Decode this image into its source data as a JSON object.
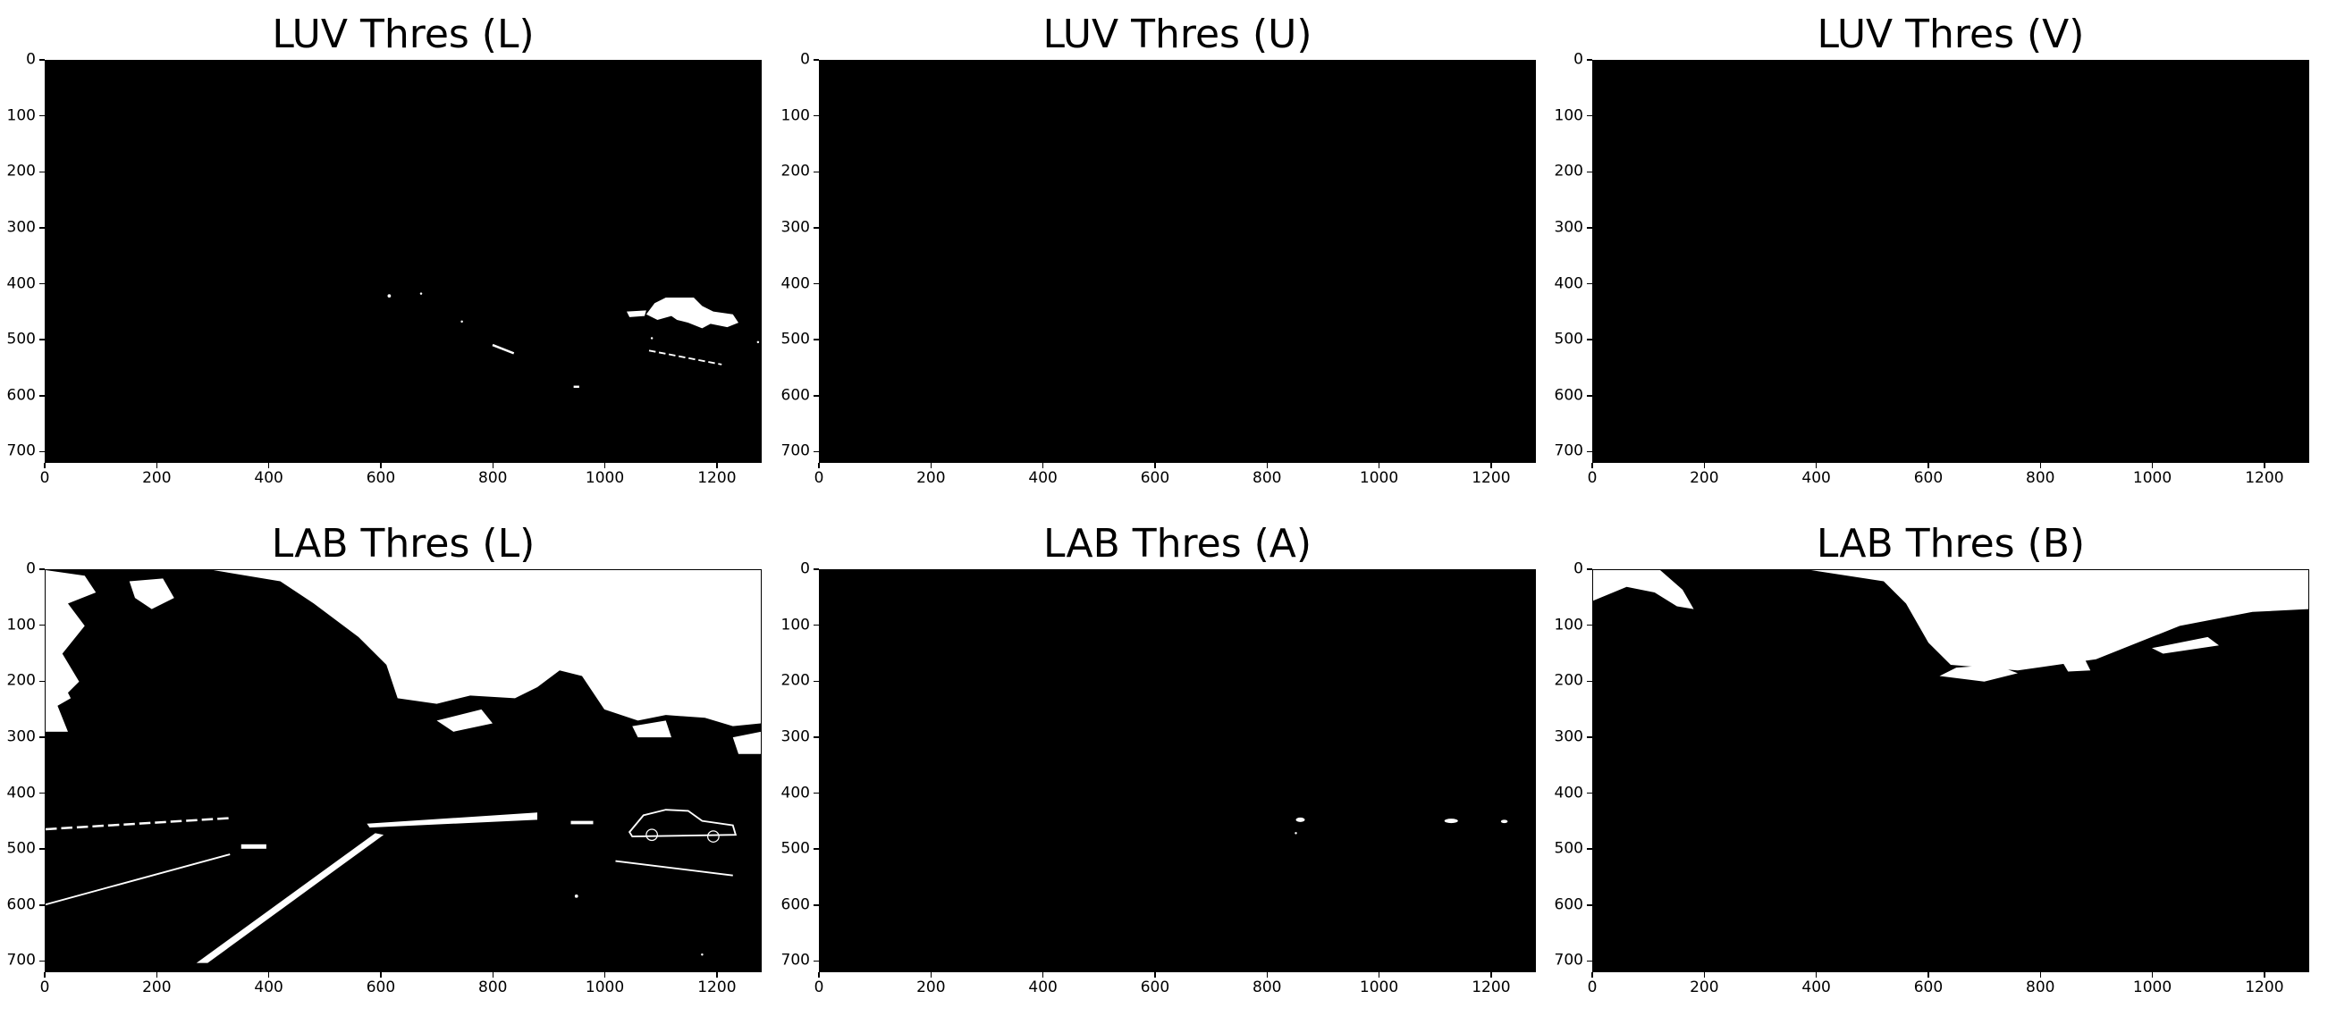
{
  "chart_data": [
    {
      "type": "image",
      "title": "LUV Thres (L)",
      "xlim": [
        0,
        1280
      ],
      "ylim": [
        720,
        0
      ],
      "xticks": [
        "0",
        "200",
        "400",
        "600",
        "800",
        "1000",
        "1200"
      ],
      "yticks": [
        "0",
        "100",
        "200",
        "300",
        "400",
        "500",
        "600",
        "700"
      ],
      "content": "mostly-black"
    },
    {
      "type": "image",
      "title": "LUV Thres (U)",
      "xlim": [
        0,
        1280
      ],
      "ylim": [
        720,
        0
      ],
      "xticks": [
        "0",
        "200",
        "400",
        "600",
        "800",
        "1000",
        "1200"
      ],
      "yticks": [
        "0",
        "100",
        "200",
        "300",
        "400",
        "500",
        "600",
        "700"
      ],
      "content": "all-black"
    },
    {
      "type": "image",
      "title": "LUV Thres (V)",
      "xlim": [
        0,
        1280
      ],
      "ylim": [
        720,
        0
      ],
      "xticks": [
        "0",
        "200",
        "400",
        "600",
        "800",
        "1000",
        "1200"
      ],
      "yticks": [
        "0",
        "100",
        "200",
        "300",
        "400",
        "500",
        "600",
        "700"
      ],
      "content": "all-black"
    },
    {
      "type": "image",
      "title": "LAB Thres (L)",
      "xlim": [
        0,
        1280
      ],
      "ylim": [
        720,
        0
      ],
      "xticks": [
        "0",
        "200",
        "400",
        "600",
        "800",
        "1000",
        "1200"
      ],
      "yticks": [
        "0",
        "100",
        "200",
        "300",
        "400",
        "500",
        "600",
        "700"
      ],
      "content": "mixed"
    },
    {
      "type": "image",
      "title": "LAB Thres (A)",
      "xlim": [
        0,
        1280
      ],
      "ylim": [
        720,
        0
      ],
      "xticks": [
        "0",
        "200",
        "400",
        "600",
        "800",
        "1000",
        "1200"
      ],
      "yticks": [
        "0",
        "100",
        "200",
        "300",
        "400",
        "500",
        "600",
        "700"
      ],
      "content": "mostly-black"
    },
    {
      "type": "image",
      "title": "LAB Thres (B)",
      "xlim": [
        0,
        1280
      ],
      "ylim": [
        720,
        0
      ],
      "xticks": [
        "0",
        "200",
        "400",
        "600",
        "800",
        "1000",
        "1200"
      ],
      "yticks": [
        "0",
        "100",
        "200",
        "300",
        "400",
        "500",
        "600",
        "700"
      ],
      "content": "mostly-black"
    }
  ]
}
